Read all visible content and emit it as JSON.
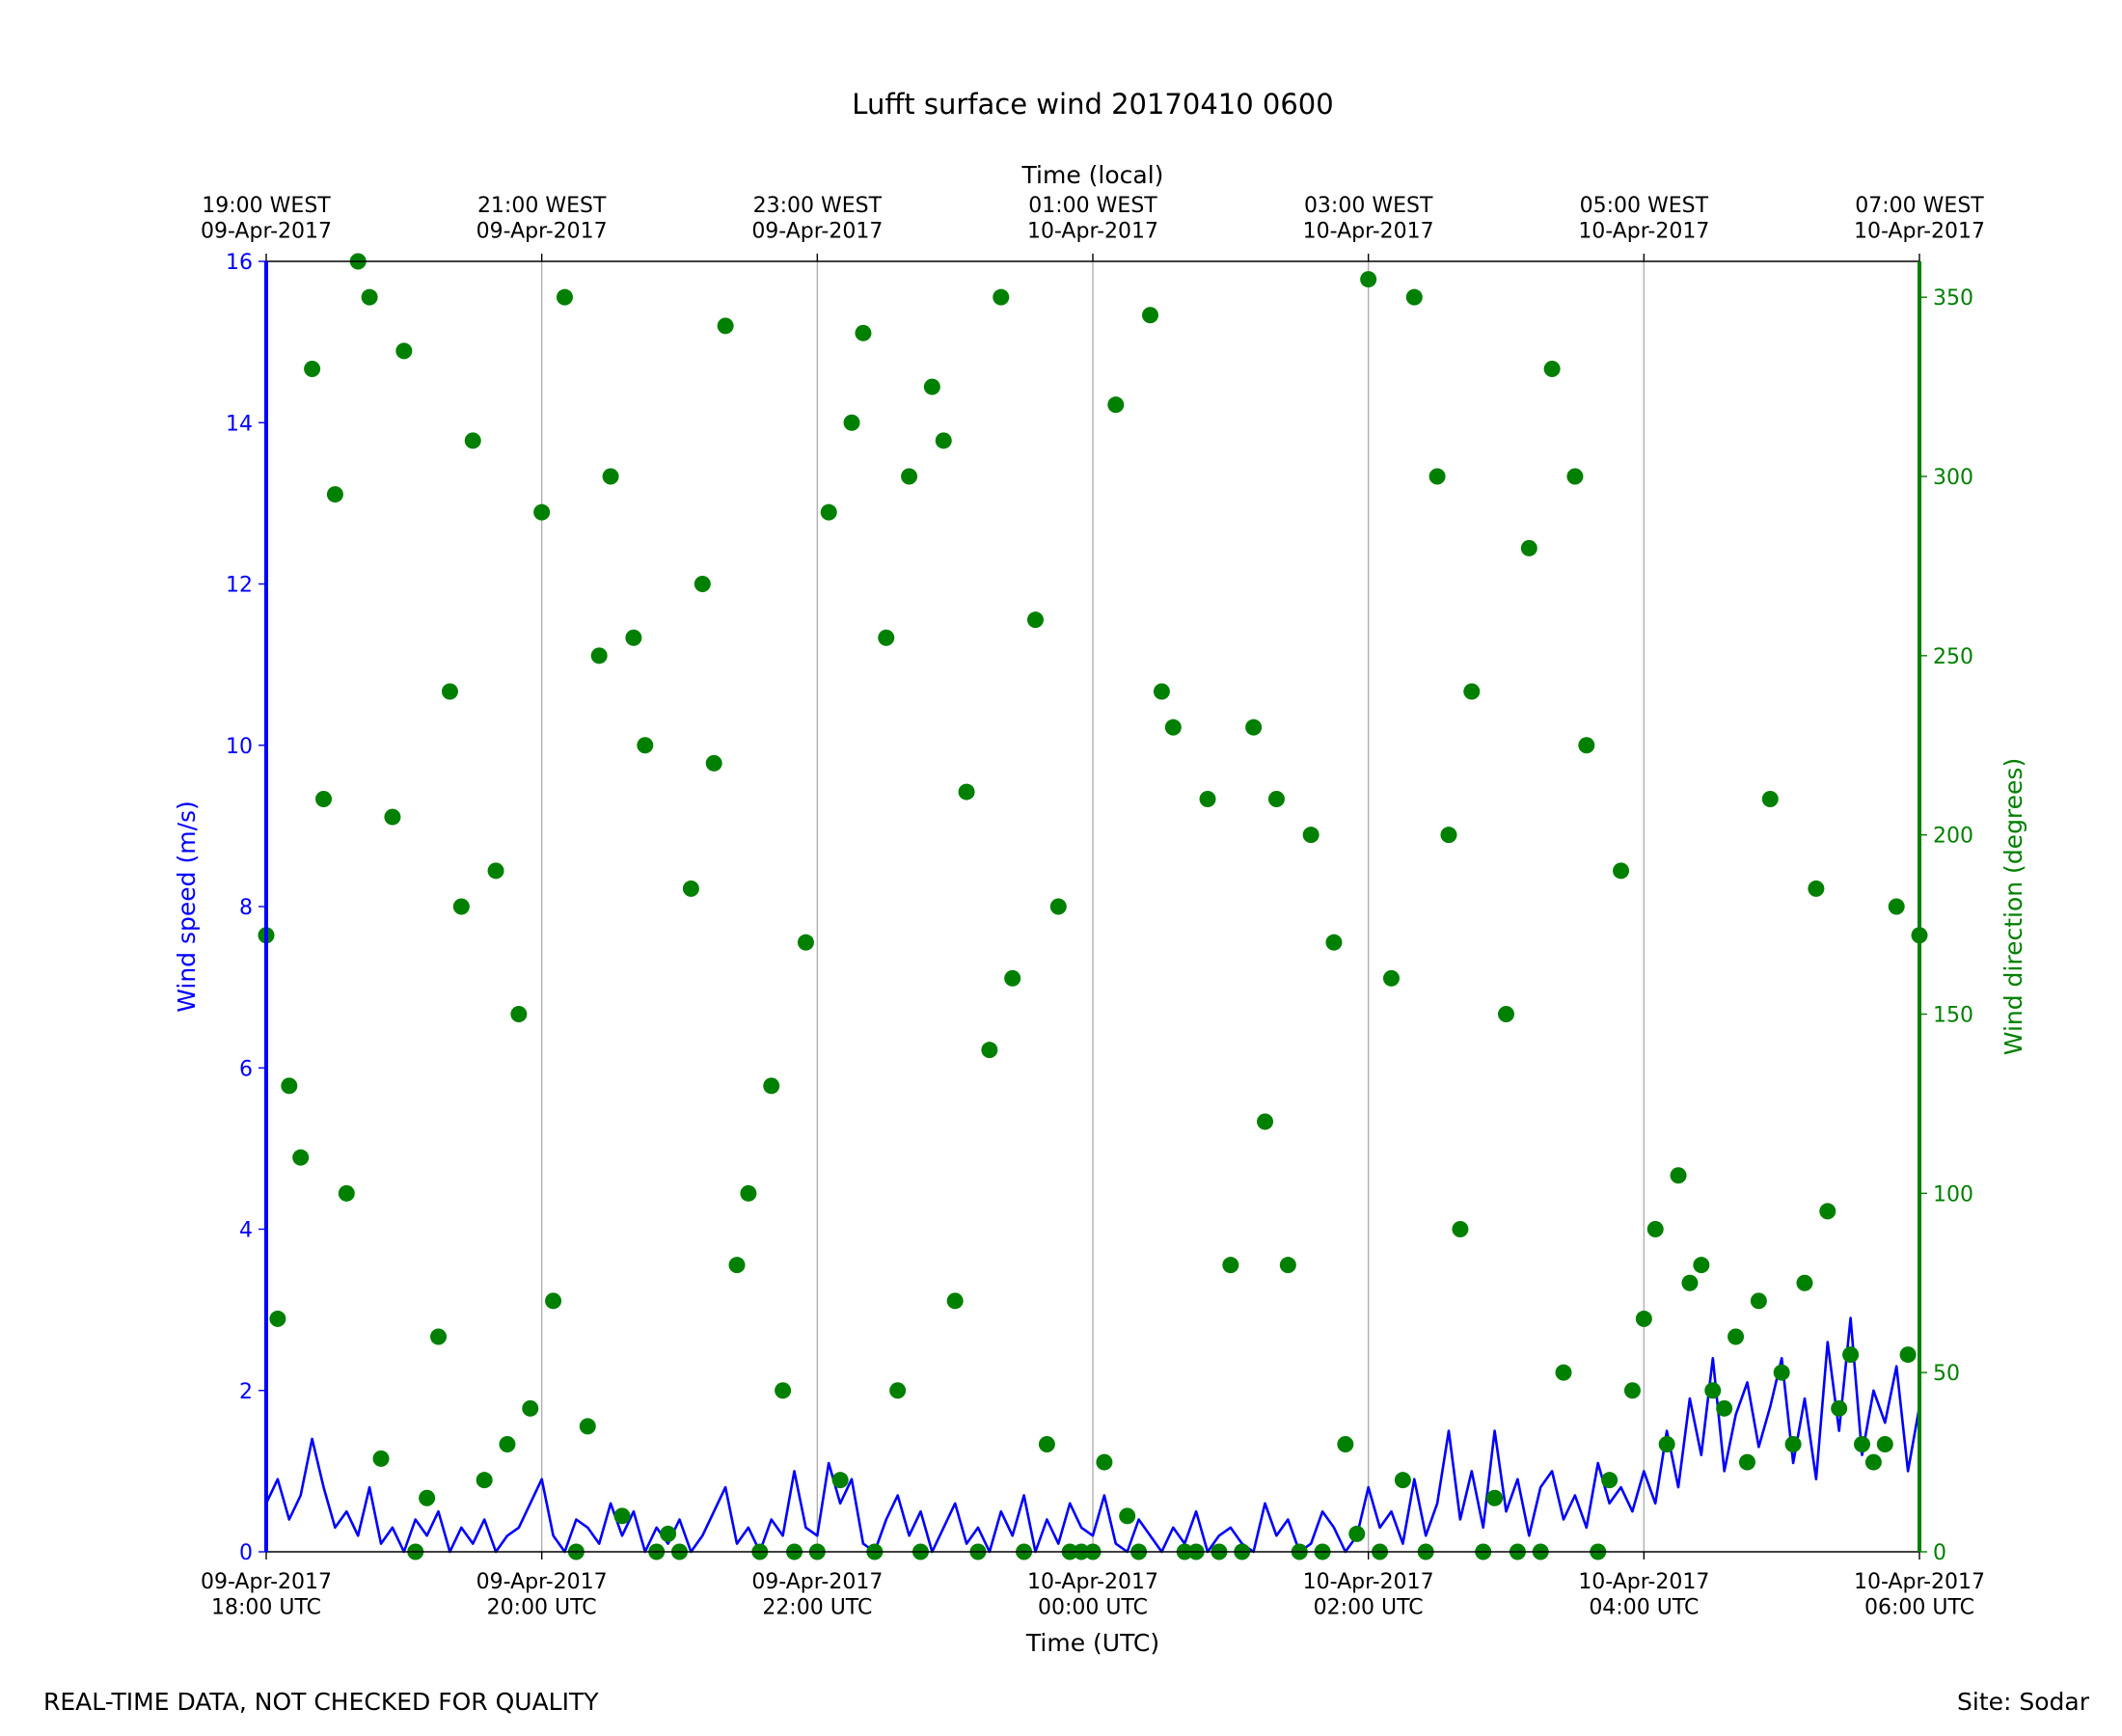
{
  "chart_data": {
    "type": "line",
    "title": "Lufft surface wind 20170410 0600",
    "xlabel": "Time (UTC)",
    "x2label": "Time (local)",
    "ylabel": "Wind speed (m/s)",
    "y2label": "Wind direction (degrees)",
    "footer_left": "REAL-TIME DATA, NOT CHECKED FOR QUALITY",
    "footer_right": "Site: Sodar",
    "grid": true,
    "xlim": [
      "2017-04-09T18:00",
      "2017-04-10T06:00"
    ],
    "xticks": [
      {
        "value": "2017-04-09T18:00",
        "label": "09-Apr-2017\n18:00 UTC"
      },
      {
        "value": "2017-04-09T20:00",
        "label": "09-Apr-2017\n20:00 UTC"
      },
      {
        "value": "2017-04-09T22:00",
        "label": "09-Apr-2017\n22:00 UTC"
      },
      {
        "value": "2017-04-10T00:00",
        "label": "10-Apr-2017\n00:00 UTC"
      },
      {
        "value": "2017-04-10T02:00",
        "label": "10-Apr-2017\n02:00 UTC"
      },
      {
        "value": "2017-04-10T04:00",
        "label": "10-Apr-2017\n04:00 UTC"
      },
      {
        "value": "2017-04-10T06:00",
        "label": "10-Apr-2017\n06:00 UTC"
      }
    ],
    "x2ticks": [
      {
        "value": "2017-04-09T18:00",
        "label": "19:00 WEST\n09-Apr-2017"
      },
      {
        "value": "2017-04-09T20:00",
        "label": "21:00 WEST\n09-Apr-2017"
      },
      {
        "value": "2017-04-09T22:00",
        "label": "23:00 WEST\n09-Apr-2017"
      },
      {
        "value": "2017-04-10T00:00",
        "label": "01:00 WEST\n10-Apr-2017"
      },
      {
        "value": "2017-04-10T02:00",
        "label": "03:00 WEST\n10-Apr-2017"
      },
      {
        "value": "2017-04-10T04:00",
        "label": "05:00 WEST\n10-Apr-2017"
      },
      {
        "value": "2017-04-10T06:00",
        "label": "07:00 WEST\n10-Apr-2017"
      }
    ],
    "ylim": [
      0,
      16
    ],
    "yticks": [
      0,
      2,
      4,
      6,
      8,
      10,
      12,
      14,
      16
    ],
    "y2lim": [
      0,
      360
    ],
    "y2ticks": [
      0,
      50,
      100,
      150,
      200,
      250,
      300,
      350
    ],
    "x": [
      "2017-04-09T18:00",
      "2017-04-09T18:05",
      "2017-04-09T18:10",
      "2017-04-09T18:15",
      "2017-04-09T18:20",
      "2017-04-09T18:25",
      "2017-04-09T18:30",
      "2017-04-09T18:35",
      "2017-04-09T18:40",
      "2017-04-09T18:45",
      "2017-04-09T18:50",
      "2017-04-09T18:55",
      "2017-04-09T19:00",
      "2017-04-09T19:05",
      "2017-04-09T19:10",
      "2017-04-09T19:15",
      "2017-04-09T19:20",
      "2017-04-09T19:25",
      "2017-04-09T19:30",
      "2017-04-09T19:35",
      "2017-04-09T19:40",
      "2017-04-09T19:45",
      "2017-04-09T19:50",
      "2017-04-09T19:55",
      "2017-04-09T20:00",
      "2017-04-09T20:05",
      "2017-04-09T20:10",
      "2017-04-09T20:15",
      "2017-04-09T20:20",
      "2017-04-09T20:25",
      "2017-04-09T20:30",
      "2017-04-09T20:35",
      "2017-04-09T20:40",
      "2017-04-09T20:45",
      "2017-04-09T20:50",
      "2017-04-09T20:55",
      "2017-04-09T21:00",
      "2017-04-09T21:05",
      "2017-04-09T21:10",
      "2017-04-09T21:15",
      "2017-04-09T21:20",
      "2017-04-09T21:25",
      "2017-04-09T21:30",
      "2017-04-09T21:35",
      "2017-04-09T21:40",
      "2017-04-09T21:45",
      "2017-04-09T21:50",
      "2017-04-09T21:55",
      "2017-04-09T22:00",
      "2017-04-09T22:05",
      "2017-04-09T22:10",
      "2017-04-09T22:15",
      "2017-04-09T22:20",
      "2017-04-09T22:25",
      "2017-04-09T22:30",
      "2017-04-09T22:35",
      "2017-04-09T22:40",
      "2017-04-09T22:45",
      "2017-04-09T22:50",
      "2017-04-09T22:55",
      "2017-04-09T23:00",
      "2017-04-09T23:05",
      "2017-04-09T23:10",
      "2017-04-09T23:15",
      "2017-04-09T23:20",
      "2017-04-09T23:25",
      "2017-04-09T23:30",
      "2017-04-09T23:35",
      "2017-04-09T23:40",
      "2017-04-09T23:45",
      "2017-04-09T23:50",
      "2017-04-09T23:55",
      "2017-04-10T00:00",
      "2017-04-10T00:05",
      "2017-04-10T00:10",
      "2017-04-10T00:15",
      "2017-04-10T00:20",
      "2017-04-10T00:25",
      "2017-04-10T00:30",
      "2017-04-10T00:35",
      "2017-04-10T00:40",
      "2017-04-10T00:45",
      "2017-04-10T00:50",
      "2017-04-10T00:55",
      "2017-04-10T01:00",
      "2017-04-10T01:05",
      "2017-04-10T01:10",
      "2017-04-10T01:15",
      "2017-04-10T01:20",
      "2017-04-10T01:25",
      "2017-04-10T01:30",
      "2017-04-10T01:35",
      "2017-04-10T01:40",
      "2017-04-10T01:45",
      "2017-04-10T01:50",
      "2017-04-10T01:55",
      "2017-04-10T02:00",
      "2017-04-10T02:05",
      "2017-04-10T02:10",
      "2017-04-10T02:15",
      "2017-04-10T02:20",
      "2017-04-10T02:25",
      "2017-04-10T02:30",
      "2017-04-10T02:35",
      "2017-04-10T02:40",
      "2017-04-10T02:45",
      "2017-04-10T02:50",
      "2017-04-10T02:55",
      "2017-04-10T03:00",
      "2017-04-10T03:05",
      "2017-04-10T03:10",
      "2017-04-10T03:15",
      "2017-04-10T03:20",
      "2017-04-10T03:25",
      "2017-04-10T03:30",
      "2017-04-10T03:35",
      "2017-04-10T03:40",
      "2017-04-10T03:45",
      "2017-04-10T03:50",
      "2017-04-10T03:55",
      "2017-04-10T04:00",
      "2017-04-10T04:05",
      "2017-04-10T04:10",
      "2017-04-10T04:15",
      "2017-04-10T04:20",
      "2017-04-10T04:25",
      "2017-04-10T04:30",
      "2017-04-10T04:35",
      "2017-04-10T04:40",
      "2017-04-10T04:45",
      "2017-04-10T04:50",
      "2017-04-10T04:55",
      "2017-04-10T05:00",
      "2017-04-10T05:05",
      "2017-04-10T05:10",
      "2017-04-10T05:15",
      "2017-04-10T05:20",
      "2017-04-10T05:25",
      "2017-04-10T05:30",
      "2017-04-10T05:35",
      "2017-04-10T05:40",
      "2017-04-10T05:45",
      "2017-04-10T05:50",
      "2017-04-10T05:55",
      "2017-04-10T06:00"
    ],
    "series": [
      {
        "name": "Wind speed",
        "color": "#0000ff",
        "axis": "y",
        "values": [
          0.6,
          0.9,
          0.4,
          0.7,
          1.4,
          0.8,
          0.3,
          0.5,
          0.2,
          0.8,
          0.1,
          0.3,
          0,
          0.4,
          0.2,
          0.5,
          0,
          0.3,
          0.1,
          0.4,
          0,
          0.2,
          0.3,
          0.6,
          0.9,
          0.2,
          0,
          0.4,
          0.3,
          0.1,
          0.6,
          0.2,
          0.5,
          0,
          0.3,
          0.1,
          0.4,
          0,
          0.2,
          0.5,
          0.8,
          0.1,
          0.3,
          0,
          0.4,
          0.2,
          1.0,
          0.3,
          0.2,
          1.1,
          0.6,
          0.9,
          0.1,
          0,
          0.4,
          0.7,
          0.2,
          0.5,
          0,
          0.3,
          0.6,
          0.1,
          0.3,
          0,
          0.5,
          0.2,
          0.7,
          0,
          0.4,
          0.1,
          0.6,
          0.3,
          0.2,
          0.7,
          0.1,
          0,
          0.4,
          0.2,
          0,
          0.3,
          0.1,
          0.5,
          0,
          0.2,
          0.3,
          0.1,
          0,
          0.6,
          0.2,
          0.4,
          0,
          0.1,
          0.5,
          0.3,
          0,
          0.2,
          0.8,
          0.3,
          0.5,
          0.1,
          0.9,
          0.2,
          0.6,
          1.5,
          0.4,
          1.0,
          0.3,
          1.5,
          0.5,
          0.9,
          0.2,
          0.8,
          1.0,
          0.4,
          0.7,
          0.3,
          1.1,
          0.6,
          0.8,
          0.5,
          1.0,
          0.6,
          1.5,
          0.8,
          1.9,
          1.2,
          2.4,
          1.0,
          1.7,
          2.1,
          1.3,
          1.8,
          2.4,
          1.1,
          1.9,
          0.9,
          2.6,
          1.5,
          2.9,
          1.2,
          2.0,
          1.6,
          2.3,
          1.0,
          1.8
        ]
      },
      {
        "name": "Wind direction",
        "color": "#008000",
        "axis": "y2",
        "values": [
          172,
          65,
          130,
          110,
          330,
          210,
          295,
          100,
          360,
          350,
          26,
          205,
          335,
          0,
          15,
          60,
          240,
          180,
          310,
          20,
          190,
          30,
          150,
          40,
          290,
          70,
          350,
          0,
          35,
          250,
          300,
          10,
          255,
          225,
          0,
          5,
          0,
          185,
          270,
          220,
          342,
          80,
          100,
          0,
          130,
          45,
          0,
          170,
          0,
          290,
          20,
          315,
          340,
          0,
          255,
          45,
          300,
          0,
          325,
          310,
          70,
          212,
          0,
          140,
          350,
          160,
          0,
          260,
          30,
          180,
          0,
          0,
          0,
          25,
          320,
          10,
          0,
          345,
          240,
          230,
          0,
          0,
          210,
          0,
          80,
          0,
          230,
          120,
          210,
          80,
          0,
          200,
          0,
          170,
          30,
          5,
          355,
          0,
          160,
          20,
          350,
          0,
          300,
          200,
          90,
          240,
          0,
          15,
          150,
          0,
          280,
          0,
          330,
          50,
          300,
          225,
          0,
          20,
          190,
          45,
          65,
          90,
          30,
          105,
          75,
          80,
          45,
          40,
          60,
          25,
          70,
          210,
          50,
          30,
          75,
          185,
          95,
          40,
          55,
          30,
          25,
          30,
          180,
          55,
          172
        ]
      }
    ]
  }
}
